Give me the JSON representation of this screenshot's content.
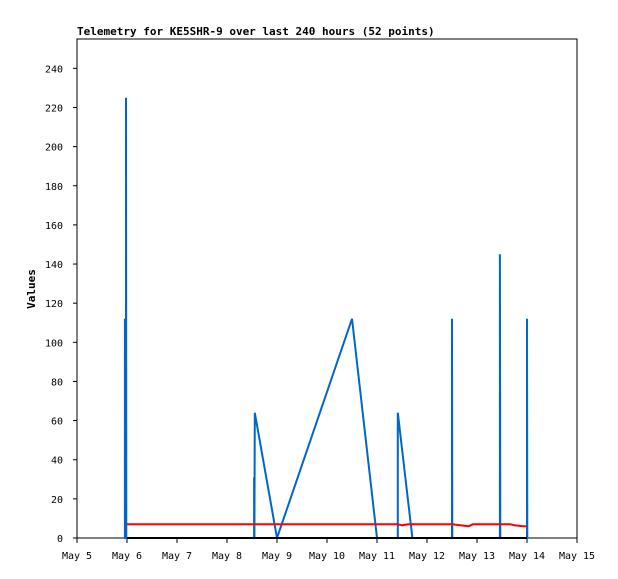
{
  "chart_data": {
    "type": "line",
    "title": "Telemetry for KE5SHR-9 over last 240 hours (52 points)",
    "xlabel": "",
    "ylabel": "Values",
    "x_ticks": [
      "May 5",
      "May 6",
      "May 7",
      "May 8",
      "May 9",
      "May 10",
      "May 11",
      "May 12",
      "May 13",
      "May 14",
      "May 15"
    ],
    "y_ticks": [
      0,
      20,
      40,
      60,
      80,
      100,
      120,
      140,
      160,
      180,
      200,
      220,
      240
    ],
    "xlim": [
      "May 5",
      "May 15"
    ],
    "ylim": [
      0,
      255
    ],
    "grid": false,
    "series": [
      {
        "color": "#0066cc",
        "points": [
          [
            "May 5 23:00",
            0
          ],
          [
            "May 5 23:00",
            112
          ],
          [
            "May 5 23:10",
            0
          ],
          [
            "May 5 23:30",
            0
          ],
          [
            "May 5 23:30",
            225
          ],
          [
            "May 5 23:40",
            0
          ],
          [
            "May 8 13:00",
            0
          ],
          [
            "May 8 13:00",
            31
          ],
          [
            "May 8 13:10",
            0
          ],
          [
            "May 8 13:20",
            64
          ],
          [
            "May 9 00:00",
            0
          ],
          [
            "May 10 12:00",
            112
          ],
          [
            "May 11 00:00",
            0
          ],
          [
            "May 11 10:00",
            0
          ],
          [
            "May 11 10:00",
            64
          ],
          [
            "May 11 17:00",
            0
          ],
          [
            "May 12 12:00",
            0
          ],
          [
            "May 12 12:00",
            112
          ],
          [
            "May 12 12:10",
            0
          ],
          [
            "May 13 11:00",
            0
          ],
          [
            "May 13 11:00",
            145
          ],
          [
            "May 13 11:10",
            0
          ],
          [
            "May 14 00:00",
            0
          ],
          [
            "May 14 00:00",
            112
          ],
          [
            "May 14 00:10",
            0
          ]
        ]
      },
      {
        "color": "#ff0000",
        "points": [
          [
            "May 6 00:00",
            7
          ],
          [
            "May 11 10:00",
            7
          ],
          [
            "May 11 12:00",
            6.5
          ],
          [
            "May 11 15:00",
            7
          ],
          [
            "May 12 12:00",
            7
          ],
          [
            "May 12 16:00",
            6.5
          ],
          [
            "May 12 20:00",
            6
          ],
          [
            "May 12 22:00",
            7
          ],
          [
            "May 13 16:00",
            7
          ],
          [
            "May 13 18:00",
            6.5
          ],
          [
            "May 13 22:00",
            6
          ],
          [
            "May 14 00:00",
            6
          ]
        ]
      },
      {
        "color": "#000000",
        "points": [
          [
            "May 6 00:00",
            0
          ],
          [
            "May 14 00:00",
            0
          ]
        ]
      }
    ]
  }
}
